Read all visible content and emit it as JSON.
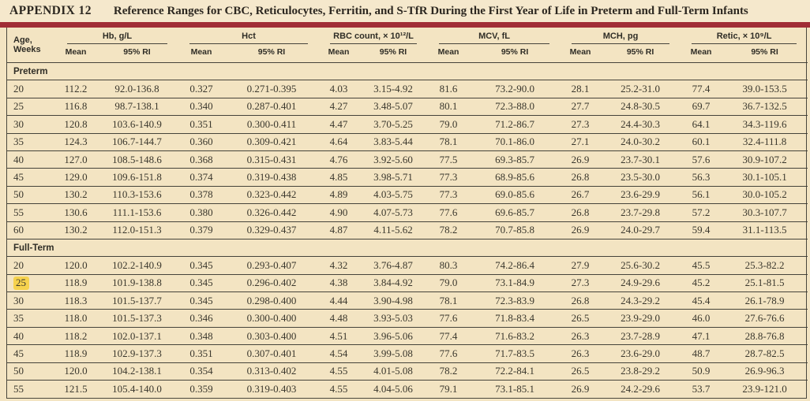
{
  "page": {
    "background_color": "#f3e4c2",
    "accent_bar_color": "#a12d35",
    "highlight_color": "#f6d24e"
  },
  "header": {
    "appendix_label": "APPENDIX 12",
    "title": "Reference Ranges for CBC, Reticulocytes, Ferritin, and S-TfR During the First Year of Life in Preterm and Full-Term Infants"
  },
  "table": {
    "age_header_line1": "Age,",
    "age_header_line2": "Weeks",
    "column_groups": [
      "Hb, g/L",
      "Hct",
      "RBC count, × 10¹²/L",
      "MCV, fL",
      "MCH, pg",
      "Retic, × 10⁹/L"
    ],
    "subheaders": [
      "Mean",
      "95% RI"
    ],
    "sections": [
      {
        "label": "Preterm",
        "rows": [
          {
            "age": "20",
            "highlight": false,
            "values": [
              "112.2",
              "92.0-136.8",
              "0.327",
              "0.271-0.395",
              "4.03",
              "3.15-4.92",
              "81.6",
              "73.2-90.0",
              "28.1",
              "25.2-31.0",
              "77.4",
              "39.0-153.5"
            ]
          },
          {
            "age": "25",
            "highlight": false,
            "values": [
              "116.8",
              "98.7-138.1",
              "0.340",
              "0.287-0.401",
              "4.27",
              "3.48-5.07",
              "80.1",
              "72.3-88.0",
              "27.7",
              "24.8-30.5",
              "69.7",
              "36.7-132.5"
            ]
          },
          {
            "age": "30",
            "highlight": false,
            "values": [
              "120.8",
              "103.6-140.9",
              "0.351",
              "0.300-0.411",
              "4.47",
              "3.70-5.25",
              "79.0",
              "71.2-86.7",
              "27.3",
              "24.4-30.3",
              "64.1",
              "34.3-119.6"
            ]
          },
          {
            "age": "35",
            "highlight": false,
            "values": [
              "124.3",
              "106.7-144.7",
              "0.360",
              "0.309-0.421",
              "4.64",
              "3.83-5.44",
              "78.1",
              "70.1-86.0",
              "27.1",
              "24.0-30.2",
              "60.1",
              "32.4-111.8"
            ]
          },
          {
            "age": "40",
            "highlight": false,
            "values": [
              "127.0",
              "108.5-148.6",
              "0.368",
              "0.315-0.431",
              "4.76",
              "3.92-5.60",
              "77.5",
              "69.3-85.7",
              "26.9",
              "23.7-30.1",
              "57.6",
              "30.9-107.2"
            ]
          },
          {
            "age": "45",
            "highlight": false,
            "values": [
              "129.0",
              "109.6-151.8",
              "0.374",
              "0.319-0.438",
              "4.85",
              "3.98-5.71",
              "77.3",
              "68.9-85.6",
              "26.8",
              "23.5-30.0",
              "56.3",
              "30.1-105.1"
            ]
          },
          {
            "age": "50",
            "highlight": false,
            "values": [
              "130.2",
              "110.3-153.6",
              "0.378",
              "0.323-0.442",
              "4.89",
              "4.03-5.75",
              "77.3",
              "69.0-85.6",
              "26.7",
              "23.6-29.9",
              "56.1",
              "30.0-105.2"
            ]
          },
          {
            "age": "55",
            "highlight": false,
            "values": [
              "130.6",
              "111.1-153.6",
              "0.380",
              "0.326-0.442",
              "4.90",
              "4.07-5.73",
              "77.6",
              "69.6-85.7",
              "26.8",
              "23.7-29.8",
              "57.2",
              "30.3-107.7"
            ]
          },
          {
            "age": "60",
            "highlight": false,
            "values": [
              "130.2",
              "112.0-151.3",
              "0.379",
              "0.329-0.437",
              "4.87",
              "4.11-5.62",
              "78.2",
              "70.7-85.8",
              "26.9",
              "24.0-29.7",
              "59.4",
              "31.1-113.5"
            ]
          }
        ]
      },
      {
        "label": "Full-Term",
        "rows": [
          {
            "age": "20",
            "highlight": false,
            "values": [
              "120.0",
              "102.2-140.9",
              "0.345",
              "0.293-0.407",
              "4.32",
              "3.76-4.87",
              "80.3",
              "74.2-86.4",
              "27.9",
              "25.6-30.2",
              "45.5",
              "25.3-82.2"
            ]
          },
          {
            "age": "25",
            "highlight": true,
            "values": [
              "118.9",
              "101.9-138.8",
              "0.345",
              "0.296-0.402",
              "4.38",
              "3.84-4.92",
              "79.0",
              "73.1-84.9",
              "27.3",
              "24.9-29.6",
              "45.2",
              "25.1-81.5"
            ]
          },
          {
            "age": "30",
            "highlight": false,
            "values": [
              "118.3",
              "101.5-137.7",
              "0.345",
              "0.298-0.400",
              "4.44",
              "3.90-4.98",
              "78.1",
              "72.3-83.9",
              "26.8",
              "24.3-29.2",
              "45.4",
              "26.1-78.9"
            ]
          },
          {
            "age": "35",
            "highlight": false,
            "values": [
              "118.0",
              "101.5-137.3",
              "0.346",
              "0.300-0.400",
              "4.48",
              "3.93-5.03",
              "77.6",
              "71.8-83.4",
              "26.5",
              "23.9-29.0",
              "46.0",
              "27.6-76.6"
            ]
          },
          {
            "age": "40",
            "highlight": false,
            "values": [
              "118.2",
              "102.0-137.1",
              "0.348",
              "0.303-0.400",
              "4.51",
              "3.96-5.06",
              "77.4",
              "71.6-83.2",
              "26.3",
              "23.7-28.9",
              "47.1",
              "28.8-76.8"
            ]
          },
          {
            "age": "45",
            "highlight": false,
            "values": [
              "118.9",
              "102.9-137.3",
              "0.351",
              "0.307-0.401",
              "4.54",
              "3.99-5.08",
              "77.6",
              "71.7-83.5",
              "26.3",
              "23.6-29.0",
              "48.7",
              "28.7-82.5"
            ]
          },
          {
            "age": "50",
            "highlight": false,
            "values": [
              "120.0",
              "104.2-138.1",
              "0.354",
              "0.313-0.402",
              "4.55",
              "4.01-5.08",
              "78.2",
              "72.2-84.1",
              "26.5",
              "23.8-29.2",
              "50.9",
              "26.9-96.3"
            ]
          },
          {
            "age": "55",
            "highlight": false,
            "values": [
              "121.5",
              "105.4-140.0",
              "0.359",
              "0.319-0.403",
              "4.55",
              "4.04-5.06",
              "79.1",
              "73.1-85.1",
              "26.9",
              "24.2-29.6",
              "53.7",
              "23.9-121.0"
            ]
          }
        ]
      }
    ]
  }
}
